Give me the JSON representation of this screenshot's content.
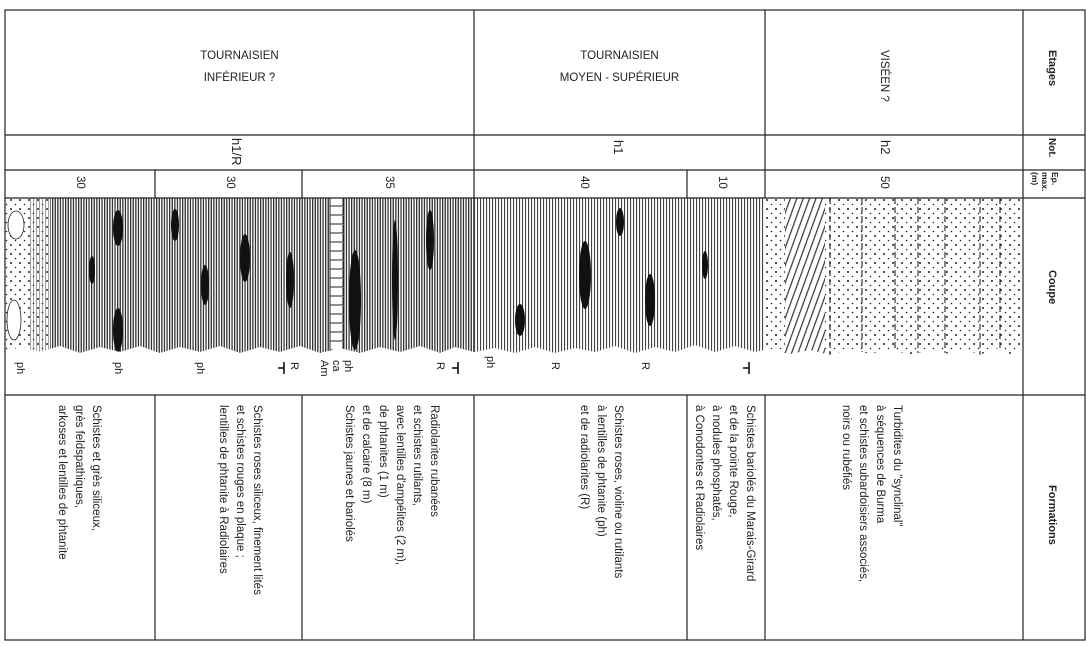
{
  "labels": {
    "etages": "Etages",
    "notation": "Not.",
    "epaisseur": [
      "Ep.",
      "max.",
      "(m)"
    ],
    "coupe": "Coupe",
    "formations": "Formations"
  },
  "etages": [
    {
      "lines": [
        "TOURNAISIEN",
        "INFÉRIEUR ?"
      ]
    },
    {
      "lines": [
        "TOURNAISIEN",
        "MOYEN - SUPÉRIEUR"
      ]
    },
    {
      "lines": [
        "VISÉEN ?"
      ]
    }
  ],
  "notations": [
    "h1/R",
    "h1",
    "h2"
  ],
  "epaisseurs": [
    30,
    30,
    35,
    40,
    10,
    50
  ],
  "coupe_labels": [
    "ph",
    "ph",
    "ph",
    "R",
    {
      "lines": [
        "ph",
        "ca",
        "Am"
      ]
    },
    "R",
    "ph",
    "R",
    "R"
  ],
  "formations": [
    {
      "lines": [
        "Schistes et grès siliceux,",
        "grès feldspathiques,",
        "arkoses et lentilles de phtanite"
      ]
    },
    {
      "lines": [
        "Schistes roses siliceux, finement lités",
        "et schistes rouges en plaque ;",
        "lentilles de phtanite à Radiolaires"
      ]
    },
    {
      "lines": [
        "Radiolarites rubanées",
        "et schistes rutilants,",
        "avec lentilles d'ampélites (2 m),",
        "de phtanites (1 m)",
        "et de calcaire (8 m)",
        "Schistes jaunes et bariolés"
      ]
    },
    {
      "lines": [
        "Schistes roses, violine ou rutilants",
        "à lentilles de phtanite (ph)",
        "et de radiolarites (R)"
      ]
    },
    {
      "lines": [
        "Schistes bariolés du Marais-Girard",
        "et de la pointe Rouge,",
        "à nodules phosphatés,",
        "à Conodontes et Radiolaires"
      ]
    },
    {
      "lines": [
        "Turbidites du \"synclinal\"",
        "à séquences de Burma",
        "et schistes subardoisiers associés,",
        "noirs ou rubéfiés"
      ]
    }
  ]
}
